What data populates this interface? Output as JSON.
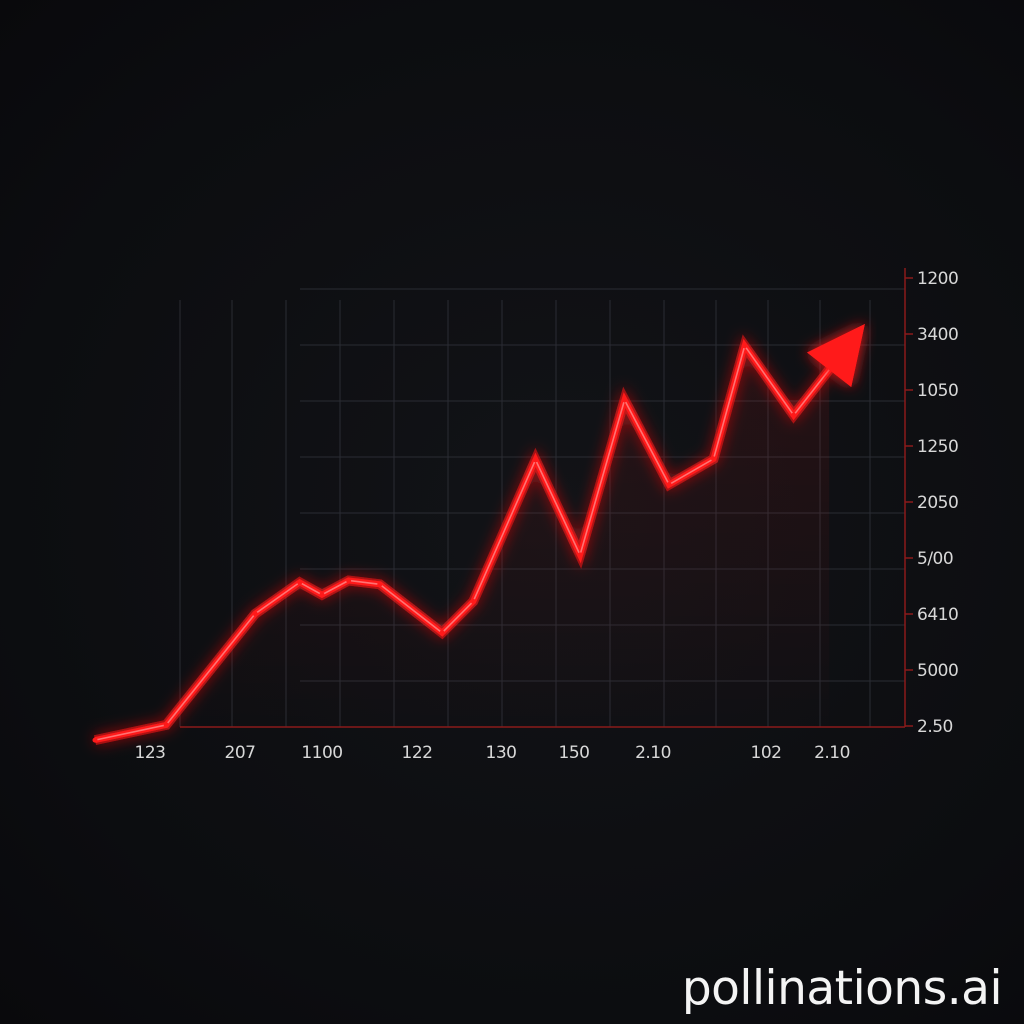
{
  "chart_data": {
    "type": "line",
    "x_tick_labels": [
      "123",
      "207",
      "1100",
      "122",
      "130",
      "150",
      "2.10",
      "102",
      "2.10"
    ],
    "y_tick_labels": [
      "1200",
      "3400",
      "1050",
      "1250",
      "2050",
      "5/00",
      "6410",
      "5000",
      "2.50"
    ],
    "y_axis_position": "right",
    "grid": true,
    "legend": "none",
    "series": [
      {
        "color": "#ff1a1a",
        "ends_with_arrow": true,
        "points": [
          {
            "x": 0.0,
            "y": 0.02
          },
          {
            "x": 0.8,
            "y": 0.18
          },
          {
            "x": 1.8,
            "y": 1.35
          },
          {
            "x": 2.3,
            "y": 1.68
          },
          {
            "x": 2.55,
            "y": 1.55
          },
          {
            "x": 2.85,
            "y": 1.7
          },
          {
            "x": 3.2,
            "y": 1.66
          },
          {
            "x": 3.9,
            "y": 1.15
          },
          {
            "x": 4.25,
            "y": 1.48
          },
          {
            "x": 4.95,
            "y": 2.97
          },
          {
            "x": 5.45,
            "y": 1.97
          },
          {
            "x": 5.95,
            "y": 3.6
          },
          {
            "x": 6.45,
            "y": 2.71
          },
          {
            "x": 6.95,
            "y": 2.98
          },
          {
            "x": 7.3,
            "y": 4.17
          },
          {
            "x": 7.85,
            "y": 3.44
          },
          {
            "x": 8.65,
            "y": 4.4
          }
        ]
      }
    ]
  },
  "watermark": "pollinations.ai"
}
